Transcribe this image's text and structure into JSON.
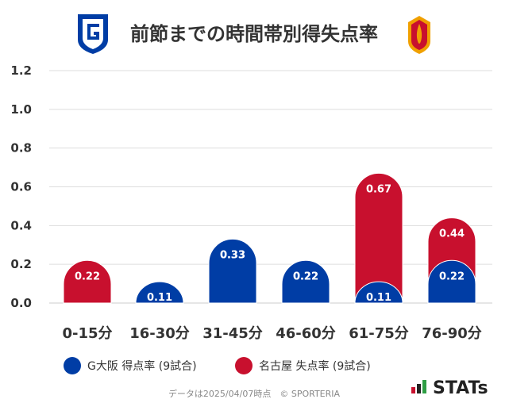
{
  "header": {
    "title": "前節までの時間帯別得失点率",
    "left_logo_icon": "gamba-osaka-crest-icon",
    "right_logo_icon": "nagoya-grampus-crest-icon"
  },
  "colors": {
    "home": "#003da5",
    "away": "#c8102e",
    "grid": "#dddddd",
    "text": "#333333"
  },
  "chart_data": {
    "type": "bar",
    "title": "前節までの時間帯別得失点率",
    "categories": [
      "0-15分",
      "16-30分",
      "31-45分",
      "46-60分",
      "61-75分",
      "76-90分"
    ],
    "series": [
      {
        "name": "G大阪 得点率 (9試合)",
        "values": [
          0,
          0.11,
          0.33,
          0.22,
          0.11,
          0.22
        ]
      },
      {
        "name": "名古屋 失点率 (9試合)",
        "values": [
          0.22,
          0,
          0.33,
          0.22,
          0.67,
          0.44
        ]
      }
    ],
    "yticks": [
      "0.0",
      "0.2",
      "0.4",
      "0.6",
      "0.8",
      "1.0",
      "1.2"
    ],
    "ylim": [
      0,
      1.2
    ],
    "grid": true,
    "legend_position": "bottom-left"
  },
  "legend": {
    "home_label": "G大阪 得点率 (9試合)",
    "away_label": "名古屋 失点率 (9試合)"
  },
  "footer": {
    "note": "データは2025/04/07時点　© SPORTERIA",
    "brand": "STATs",
    "brand_icon": "stats-logo-icon"
  }
}
